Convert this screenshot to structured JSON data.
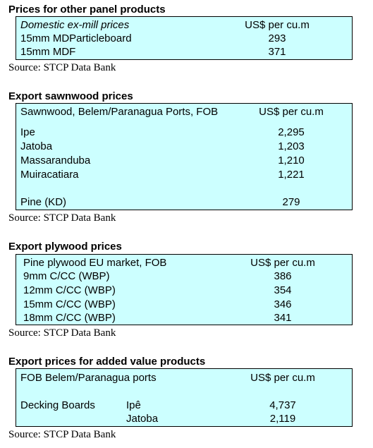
{
  "sections": [
    {
      "title": "Prices for other panel products",
      "header": {
        "label": "Domestic ex-mill prices",
        "unit": "US$ per cu.m"
      },
      "rows": [
        {
          "label": "15mm MDParticleboard",
          "value": "293"
        },
        {
          "label": "15mm MDF",
          "value": "371"
        }
      ],
      "source": "Source: STCP Data Bank"
    },
    {
      "title": "Export sawnwood prices",
      "header": {
        "label": "Sawnwood, Belem/Paranagua Ports, FOB",
        "unit": "US$ per cu.m"
      },
      "rows": [
        {
          "label": "Ipe",
          "value": "2,295"
        },
        {
          "label": "Jatoba",
          "value": "1,203"
        },
        {
          "label": "Massaranduba",
          "value": "1,210"
        },
        {
          "label": "Muiracatiara",
          "value": "1,221"
        },
        {
          "label": "Pine (KD)",
          "value": "279"
        }
      ],
      "source": "Source: STCP Data Bank"
    },
    {
      "title": "Export plywood prices",
      "header": {
        "label": "Pine plywood EU market, FOB",
        "unit": "US$ per cu.m"
      },
      "rows": [
        {
          "label": "9mm C/CC (WBP)",
          "value": "386"
        },
        {
          "label": "12mm C/CC (WBP)",
          "value": "354"
        },
        {
          "label": "15mm C/CC (WBP)",
          "value": "346"
        },
        {
          "label": "18mm C/CC (WBP)",
          "value": "341"
        }
      ],
      "source": "Source: STCP Data Bank"
    },
    {
      "title": "Export prices for added value products",
      "header": {
        "label": "FOB Belem/Paranagua ports",
        "unit": "US$ per cu.m"
      },
      "rows": [
        {
          "label": "Decking Boards",
          "sub": "Ipê",
          "value": "4,737"
        },
        {
          "label": "",
          "sub": "Jatoba",
          "value": "2,119"
        }
      ],
      "source": "Source: STCP Data Bank"
    }
  ]
}
